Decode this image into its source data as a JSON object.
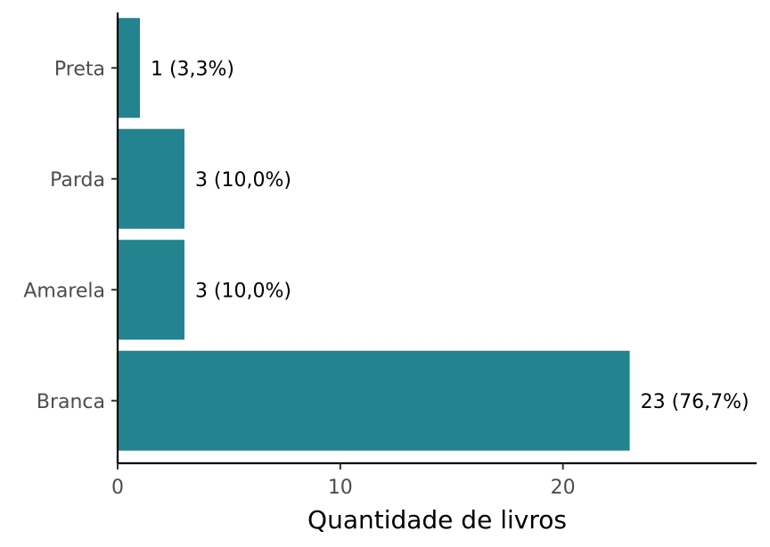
{
  "chart_data": {
    "type": "bar",
    "orientation": "horizontal",
    "categories": [
      "Branca",
      "Amarela",
      "Parda",
      "Preta"
    ],
    "values": [
      23,
      3,
      3,
      1
    ],
    "data_labels": [
      "23 (76,7%)",
      "3 (10,0%)",
      "3 (10,0%)",
      "1 (3,3%)"
    ],
    "xlabel": "Quantidade de livros",
    "ylabel": "",
    "xlim": [
      0,
      28.7
    ],
    "x_ticks": [
      0,
      10,
      20
    ],
    "grid": false,
    "legend": "none",
    "bar_color": "#23838f"
  }
}
